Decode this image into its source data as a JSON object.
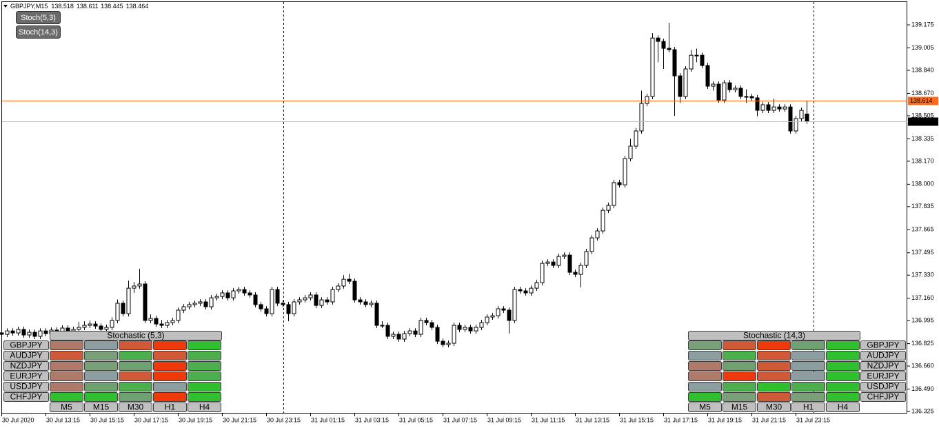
{
  "header": {
    "symbol": "GBPJPY,M15"
  },
  "buttons": [
    "Stoch(5,3)",
    "Stoch(14,3)"
  ],
  "chart_data": {
    "type": "candlestick",
    "categories": [
      "30 Jul 2020",
      null,
      null,
      null,
      null,
      null,
      null,
      null,
      "30 Jul 13:15",
      null,
      null,
      null,
      null,
      null,
      null,
      null,
      "30 Jul 15:15",
      null,
      null,
      null,
      null,
      null,
      null,
      null,
      "30 Jul 17:15",
      null,
      null,
      null,
      null,
      null,
      null,
      null,
      "30 Jul 19:15",
      null,
      null,
      null,
      null,
      null,
      null,
      null,
      "30 Jul 21:15",
      null,
      null,
      null,
      null,
      null,
      null,
      null,
      "30 Jul 23:15",
      null,
      null,
      null,
      null,
      null,
      null,
      null,
      "31 Jul 01:15",
      null,
      null,
      null,
      null,
      null,
      null,
      null,
      "31 Jul 03:15",
      null,
      null,
      null,
      null,
      null,
      null,
      null,
      "31 Jul 05:15",
      null,
      null,
      null,
      null,
      null,
      null,
      null,
      "31 Jul 07:15",
      null,
      null,
      null,
      null,
      null,
      null,
      null,
      "31 Jul 09:15",
      null,
      null,
      null,
      null,
      null,
      null,
      null,
      "31 Jul 11:15",
      null,
      null,
      null,
      null,
      null,
      null,
      null,
      "31 Jul 13:15",
      null,
      null,
      null,
      null,
      null,
      null,
      null,
      "31 Jul 15:15",
      null,
      null,
      null,
      null,
      null,
      null,
      null,
      "31 Jul 17:15",
      null,
      null,
      null,
      null,
      null,
      null,
      null,
      "31 Jul 19:15",
      null,
      null,
      null,
      null,
      null,
      null,
      null,
      "31 Jul 21:15",
      null,
      null,
      null,
      null,
      null,
      null,
      null,
      "31 Jul 23:15",
      null,
      null
    ],
    "ohlc": [
      [
        136.905,
        136.925,
        136.874,
        136.894
      ],
      [
        136.894,
        136.939,
        136.874,
        136.919
      ],
      [
        136.919,
        136.939,
        136.884,
        136.904
      ],
      [
        136.904,
        136.95,
        136.884,
        136.93
      ],
      [
        136.93,
        136.95,
        136.869,
        136.889
      ],
      [
        136.889,
        136.929,
        136.869,
        136.909
      ],
      [
        136.909,
        136.929,
        136.859,
        136.879
      ],
      [
        136.879,
        136.939,
        136.859,
        136.919
      ],
      [
        136.919,
        136.939,
        136.879,
        136.899
      ],
      [
        136.899,
        136.945,
        136.879,
        136.925
      ],
      [
        136.925,
        136.945,
        136.889,
        136.909
      ],
      [
        136.909,
        136.96,
        136.889,
        136.94
      ],
      [
        136.94,
        136.96,
        136.899,
        136.919
      ],
      [
        136.919,
        136.95,
        136.899,
        136.93
      ],
      [
        136.93,
        136.985,
        136.91,
        136.945
      ],
      [
        136.945,
        136.99,
        136.925,
        136.96
      ],
      [
        136.96,
        136.995,
        136.94,
        136.97
      ],
      [
        136.97,
        136.99,
        136.935,
        136.955
      ],
      [
        136.955,
        136.975,
        136.91,
        136.93
      ],
      [
        136.93,
        136.965,
        136.91,
        136.945
      ],
      [
        136.945,
        137.02,
        136.925,
        136.996
      ],
      [
        136.996,
        137.15,
        136.976,
        137.123
      ],
      [
        137.123,
        137.143,
        137.026,
        137.046
      ],
      [
        137.046,
        137.29,
        137.026,
        137.234
      ],
      [
        137.234,
        137.28,
        137.2,
        137.25
      ],
      [
        137.25,
        137.376,
        137.23,
        137.265
      ],
      [
        137.265,
        137.285,
        136.976,
        136.996
      ],
      [
        136.996,
        137.04,
        136.976,
        137.011
      ],
      [
        137.011,
        137.031,
        136.95,
        136.97
      ],
      [
        136.97,
        137.0,
        136.94,
        136.96
      ],
      [
        136.96,
        137.0,
        136.94,
        136.98
      ],
      [
        136.98,
        137.016,
        136.96,
        136.996
      ],
      [
        136.996,
        137.092,
        136.976,
        137.072
      ],
      [
        137.072,
        137.117,
        137.052,
        137.097
      ],
      [
        137.097,
        137.133,
        137.077,
        137.113
      ],
      [
        137.113,
        137.143,
        137.093,
        137.123
      ],
      [
        137.123,
        137.153,
        137.103,
        137.133
      ],
      [
        137.133,
        137.153,
        137.077,
        137.097
      ],
      [
        137.097,
        137.183,
        137.077,
        137.163
      ],
      [
        137.163,
        137.193,
        137.143,
        137.173
      ],
      [
        137.173,
        137.219,
        137.153,
        137.199
      ],
      [
        137.199,
        137.219,
        137.143,
        137.163
      ],
      [
        137.163,
        137.234,
        137.143,
        137.214
      ],
      [
        137.214,
        137.244,
        137.194,
        137.224
      ],
      [
        137.224,
        137.244,
        137.179,
        137.199
      ],
      [
        137.199,
        137.219,
        137.164,
        137.184
      ],
      [
        137.184,
        137.204,
        137.093,
        137.113
      ],
      [
        137.113,
        137.133,
        137.062,
        137.082
      ],
      [
        137.082,
        137.102,
        137.026,
        137.046
      ],
      [
        137.046,
        137.244,
        137.026,
        137.224
      ],
      [
        137.224,
        137.244,
        137.103,
        137.123
      ],
      [
        137.123,
        137.143,
        137.093,
        137.113
      ],
      [
        137.113,
        137.133,
        136.99,
        137.046
      ],
      [
        137.046,
        137.153,
        137.026,
        137.133
      ],
      [
        137.133,
        137.168,
        137.113,
        137.148
      ],
      [
        137.148,
        137.183,
        137.128,
        137.163
      ],
      [
        137.163,
        137.204,
        137.143,
        137.184
      ],
      [
        137.184,
        137.204,
        137.087,
        137.107
      ],
      [
        137.107,
        137.168,
        137.087,
        137.148
      ],
      [
        137.148,
        137.168,
        137.113,
        137.133
      ],
      [
        137.133,
        137.244,
        137.113,
        137.224
      ],
      [
        137.224,
        137.27,
        137.204,
        137.25
      ],
      [
        137.25,
        137.33,
        137.23,
        137.3
      ],
      [
        137.3,
        137.34,
        137.265,
        137.285
      ],
      [
        137.285,
        137.305,
        137.128,
        137.148
      ],
      [
        137.148,
        137.168,
        137.113,
        137.133
      ],
      [
        137.133,
        137.153,
        137.093,
        137.113
      ],
      [
        137.113,
        137.143,
        137.093,
        137.123
      ],
      [
        137.123,
        137.143,
        136.94,
        136.96
      ],
      [
        136.96,
        136.99,
        136.94,
        136.96
      ],
      [
        136.96,
        136.98,
        136.859,
        136.879
      ],
      [
        136.879,
        136.914,
        136.859,
        136.894
      ],
      [
        136.894,
        136.914,
        136.839,
        136.859
      ],
      [
        136.859,
        136.919,
        136.839,
        136.899
      ],
      [
        136.899,
        136.939,
        136.879,
        136.919
      ],
      [
        136.919,
        136.939,
        136.874,
        136.894
      ],
      [
        136.894,
        137.016,
        136.874,
        136.996
      ],
      [
        136.996,
        137.016,
        136.96,
        136.98
      ],
      [
        136.98,
        137.0,
        136.925,
        136.945
      ],
      [
        136.945,
        136.965,
        136.823,
        136.843
      ],
      [
        136.843,
        136.863,
        136.798,
        136.818
      ],
      [
        136.818,
        136.848,
        136.798,
        136.828
      ],
      [
        136.828,
        136.98,
        136.808,
        136.96
      ],
      [
        136.96,
        136.98,
        136.91,
        136.93
      ],
      [
        136.93,
        136.965,
        136.91,
        136.945
      ],
      [
        136.945,
        136.965,
        136.899,
        136.919
      ],
      [
        136.919,
        136.965,
        136.899,
        136.945
      ],
      [
        136.945,
        137.0,
        136.925,
        136.98
      ],
      [
        136.98,
        137.041,
        136.96,
        137.021
      ],
      [
        137.021,
        137.051,
        137.001,
        137.031
      ],
      [
        137.031,
        137.102,
        137.011,
        137.082
      ],
      [
        137.082,
        137.102,
        137.052,
        137.072
      ],
      [
        137.072,
        137.092,
        136.9,
        136.996
      ],
      [
        136.996,
        137.244,
        136.976,
        137.224
      ],
      [
        137.224,
        137.244,
        137.194,
        137.214
      ],
      [
        137.214,
        137.234,
        137.179,
        137.199
      ],
      [
        137.199,
        137.254,
        137.179,
        137.234
      ],
      [
        137.234,
        137.295,
        137.214,
        137.275
      ],
      [
        137.275,
        137.437,
        137.255,
        137.417
      ],
      [
        137.417,
        137.447,
        137.397,
        137.427
      ],
      [
        137.427,
        137.447,
        137.382,
        137.402
      ],
      [
        137.402,
        137.488,
        137.382,
        137.468
      ],
      [
        137.468,
        137.498,
        137.448,
        137.478
      ],
      [
        137.478,
        137.498,
        137.331,
        137.351
      ],
      [
        137.351,
        137.371,
        137.316,
        137.336
      ],
      [
        137.336,
        137.422,
        137.24,
        137.402
      ],
      [
        137.402,
        137.524,
        137.382,
        137.504
      ],
      [
        137.504,
        137.625,
        137.484,
        137.605
      ],
      [
        137.605,
        137.676,
        137.585,
        137.656
      ],
      [
        137.656,
        137.828,
        137.636,
        137.808
      ],
      [
        137.808,
        137.864,
        137.788,
        137.844
      ],
      [
        137.844,
        138.032,
        137.824,
        138.012
      ],
      [
        138.012,
        138.032,
        137.976,
        137.996
      ],
      [
        137.996,
        138.209,
        137.976,
        138.189
      ],
      [
        138.189,
        138.335,
        138.169,
        138.281
      ],
      [
        138.281,
        138.413,
        138.261,
        138.393
      ],
      [
        138.393,
        138.69,
        138.373,
        138.596
      ],
      [
        138.596,
        138.667,
        138.576,
        138.647
      ],
      [
        138.647,
        139.114,
        138.627,
        139.078
      ],
      [
        139.078,
        139.098,
        138.9,
        139.053
      ],
      [
        139.053,
        139.073,
        138.85,
        139.002
      ],
      [
        139.002,
        139.19,
        138.972,
        138.992
      ],
      [
        138.992,
        139.012,
        138.505,
        138.799
      ],
      [
        138.799,
        138.819,
        138.6,
        138.647
      ],
      [
        138.647,
        138.87,
        138.627,
        138.85
      ],
      [
        138.85,
        138.99,
        138.83,
        138.951
      ],
      [
        138.951,
        139.0,
        138.9,
        138.951
      ],
      [
        138.951,
        138.971,
        138.855,
        138.875
      ],
      [
        138.875,
        138.895,
        138.703,
        138.723
      ],
      [
        138.723,
        138.758,
        138.69,
        138.738
      ],
      [
        138.738,
        138.758,
        138.601,
        138.621
      ],
      [
        138.621,
        138.768,
        138.601,
        138.748
      ],
      [
        138.748,
        138.768,
        138.677,
        138.697
      ],
      [
        138.697,
        138.728,
        138.677,
        138.708
      ],
      [
        138.708,
        138.728,
        138.627,
        138.647
      ],
      [
        138.647,
        138.7,
        138.6,
        138.647
      ],
      [
        138.647,
        138.667,
        138.617,
        138.637
      ],
      [
        138.637,
        138.657,
        138.5,
        138.545
      ],
      [
        138.545,
        138.606,
        138.525,
        138.586
      ],
      [
        138.586,
        138.606,
        138.525,
        138.545
      ],
      [
        138.545,
        138.63,
        138.525,
        138.57
      ],
      [
        138.57,
        138.59,
        138.535,
        138.555
      ],
      [
        138.555,
        138.59,
        138.535,
        138.57
      ],
      [
        138.57,
        138.59,
        138.373,
        138.393
      ],
      [
        138.393,
        138.504,
        138.373,
        138.484
      ],
      [
        138.484,
        138.565,
        138.464,
        138.545
      ],
      [
        138.518,
        138.611,
        138.445,
        138.464
      ]
    ],
    "up_color": "#ffffff",
    "down_color": "#000000",
    "ylim": [
      136.31,
      139.343
    ],
    "yticks": [
      139.175,
      139.005,
      {
        "value": 138.84,
        "label": "138.840"
      },
      {
        "value": 138.67,
        "label": "138.670"
      },
      138.505,
      138.335,
      {
        "value": 138.17,
        "label": "138.170"
      },
      {
        "value": 138,
        "label": "138.000"
      },
      137.835,
      137.665,
      137.495,
      {
        "value": 137.33,
        "label": "137.330"
      },
      {
        "value": 137.16,
        "label": "137.160"
      },
      136.995,
      136.825,
      {
        "value": 136.66,
        "label": "136.660"
      },
      {
        "value": 136.49,
        "label": "136.490"
      },
      136.325
    ],
    "levels": [
      {
        "value": 138.614,
        "color": "#ff6a1a",
        "box_color": "#ff6a1a"
      },
      {
        "value": 138.464,
        "color": "#c0c0c0",
        "box_color": "#000000"
      }
    ]
  },
  "panels": [
    {
      "title": "Stochastic (5,3)",
      "side": "left",
      "symbols": [
        "GBPJPY",
        "AUDJPY",
        "NZDJPY",
        "EURJPY",
        "USDJPY",
        "CHFJPY"
      ],
      "timeframes": [
        "M5",
        "M15",
        "M30",
        "H1",
        "H4"
      ],
      "cells": [
        [
          "#b07a6a",
          "#8c9ea0",
          "#d05a38",
          "#ee3a0a",
          "#2fbf2f"
        ],
        [
          "#d05a38",
          "#7aa07a",
          "#4cae4c",
          "#d05a38",
          "#4cae4c"
        ],
        [
          "#b07a6a",
          "#7aa07a",
          "#6fa06f",
          "#ee3a0a",
          "#4cae4c"
        ],
        [
          "#b07a6a",
          "#8c9ea0",
          "#d05a38",
          "#ee3a0a",
          "#4cae4c"
        ],
        [
          "#b07a6a",
          "#6fa06f",
          "#4cae4c",
          "#8c9ea0",
          "#2fbf2f"
        ],
        [
          "#2fbf2f",
          "#2fbf2f",
          "#6fa06f",
          "#ee3a0a",
          "#2fbf2f"
        ]
      ]
    },
    {
      "title": "Stochastic (14,3)",
      "side": "right",
      "symbols": [
        "GBPJPY",
        "AUDJPY",
        "NZDJPY",
        "EURJPY",
        "USDJPY",
        "CHFJPY"
      ],
      "timeframes": [
        "M5",
        "M15",
        "M30",
        "H1",
        "H4"
      ],
      "cells": [
        [
          "#7aa07a",
          "#d05a38",
          "#ee3a0a",
          "#6fa06f",
          "#2fbf2f"
        ],
        [
          "#8c9ea0",
          "#4cae4c",
          "#d05a38",
          "#8c9ea0",
          "#2fbf2f"
        ],
        [
          "#b07a6a",
          "#6fa06f",
          "#d05a38",
          "#8c9ea0",
          "#2fbf2f"
        ],
        [
          "#b07a6a",
          "#ee3a0a",
          "#d05a38",
          "#8c9ea0",
          "#2fbf2f"
        ],
        [
          "#8c9ea0",
          "#4cae4c",
          "#2fbf2f",
          "#4cae4c",
          "#2fbf2f"
        ],
        [
          "#2fbf2f",
          "#7aa07a",
          "#d05a38",
          "#7aa07a",
          "#2fbf2f"
        ]
      ]
    }
  ]
}
